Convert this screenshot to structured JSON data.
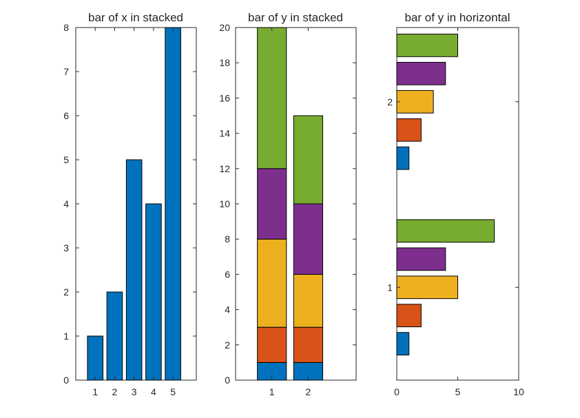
{
  "chart_data": [
    {
      "type": "bar",
      "title": "bar of x in stacked",
      "orientation": "vertical",
      "categories": [
        "1",
        "2",
        "3",
        "4",
        "5"
      ],
      "values": [
        1,
        2,
        5,
        4,
        8
      ],
      "ylim": [
        0,
        8
      ],
      "yticks": [
        "0",
        "1",
        "2",
        "3",
        "4",
        "5",
        "6",
        "7",
        "8"
      ],
      "xlabel": "",
      "ylabel": "",
      "grid": false,
      "color": "#0072BD"
    },
    {
      "type": "bar",
      "title": "bar of y in stacked",
      "orientation": "vertical",
      "stacked": true,
      "categories": [
        "1",
        "2"
      ],
      "series": [
        {
          "values": [
            1,
            1
          ],
          "color": "#0072BD"
        },
        {
          "values": [
            2,
            2
          ],
          "color": "#D95319"
        },
        {
          "values": [
            5,
            3
          ],
          "color": "#EDB120"
        },
        {
          "values": [
            4,
            4
          ],
          "color": "#7E2F8E"
        },
        {
          "values": [
            8,
            5
          ],
          "color": "#77AC30"
        }
      ],
      "ylim": [
        0,
        20
      ],
      "yticks": [
        "0",
        "2",
        "4",
        "6",
        "8",
        "10",
        "12",
        "14",
        "16",
        "18",
        "20"
      ],
      "xlabel": "",
      "ylabel": "",
      "grid": false
    },
    {
      "type": "bar",
      "title": "bar of y in horizontal",
      "orientation": "horizontal",
      "grouped": true,
      "categories": [
        "1",
        "2"
      ],
      "series": [
        {
          "values": [
            1,
            1
          ],
          "color": "#0072BD"
        },
        {
          "values": [
            2,
            2
          ],
          "color": "#D95319"
        },
        {
          "values": [
            5,
            3
          ],
          "color": "#EDB120"
        },
        {
          "values": [
            4,
            4
          ],
          "color": "#7E2F8E"
        },
        {
          "values": [
            8,
            5
          ],
          "color": "#77AC30"
        }
      ],
      "xlim": [
        0,
        10
      ],
      "xticks": [
        "0",
        "5",
        "10"
      ],
      "xlabel": "",
      "ylabel": "",
      "grid": false
    }
  ]
}
